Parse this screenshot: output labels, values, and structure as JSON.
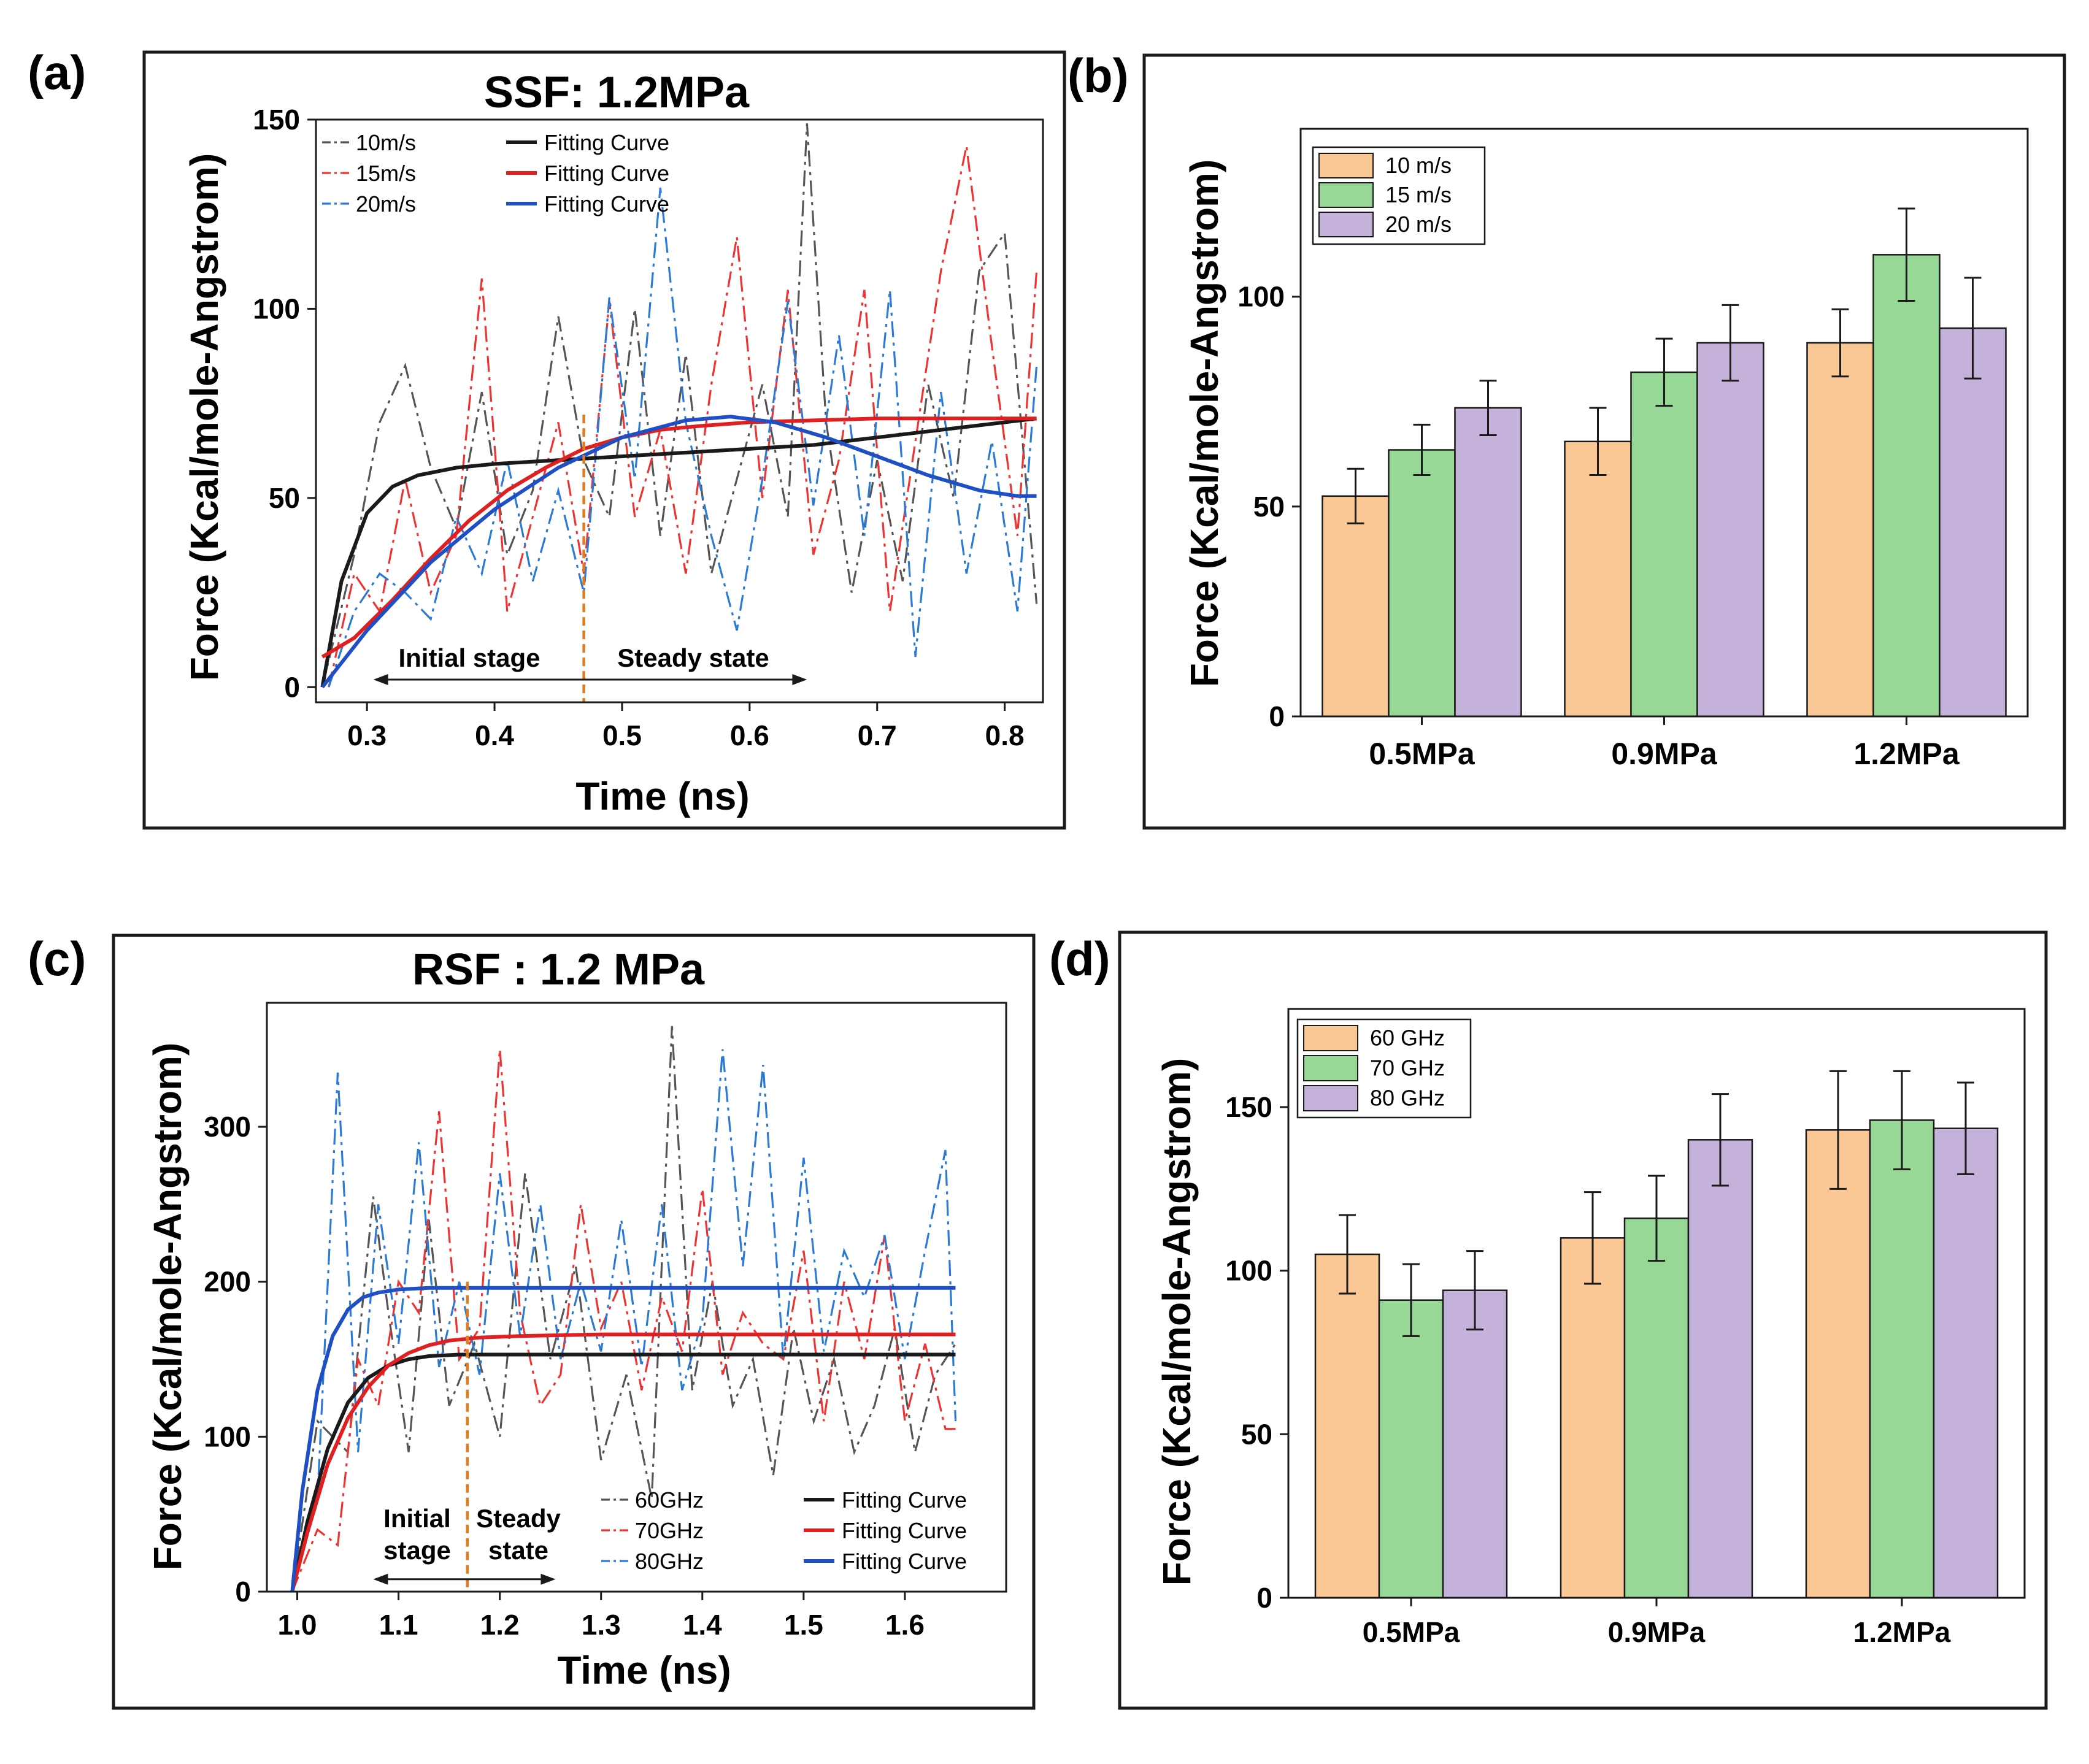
{
  "figure": {
    "panel_labels": [
      "(a)",
      "(b)",
      "(c)",
      "(d)"
    ]
  },
  "colors": {
    "black": "#1a1a1a",
    "red": "#e02020",
    "blue": "#1f4fc4",
    "dash_black": "#555555",
    "dash_red": "#ee3333",
    "dash_blue": "#2a7ad6",
    "phase_marker": "#e07b20",
    "bar_orange": "#f9c895",
    "bar_green": "#97d897",
    "bar_purple": "#c5b2da"
  },
  "chart_data": [
    {
      "id": "a",
      "type": "line",
      "title": "SSF: 1.2MPa",
      "xlabel": "Time (ns)",
      "ylabel": "Force (Kcal/mole-Angstrom)",
      "xlim": [
        0.26,
        0.83
      ],
      "ylim": [
        -4,
        150
      ],
      "xticks": [
        0.3,
        0.4,
        0.5,
        0.6,
        0.7,
        0.8
      ],
      "yticks": [
        0,
        50,
        100,
        150
      ],
      "xticklabels": [
        "0.3",
        "0.4",
        "0.5",
        "0.6",
        "0.7",
        "0.8"
      ],
      "yticklabels": [
        "0",
        "50",
        "100",
        "150"
      ],
      "phase_boundary_x": 0.47,
      "annotations": {
        "initial": "Initial stage",
        "steady": "Steady state"
      },
      "arrow_x": [
        0.305,
        0.645
      ],
      "arrow_y": 2,
      "legend": {
        "placement": "top-left",
        "raw": [
          "10m/s",
          "15m/s",
          "20m/s"
        ],
        "fit": [
          "Fitting Curve",
          "Fitting Curve",
          "Fitting Curve"
        ]
      },
      "raw_series": [
        {
          "name": "10m/s",
          "color": "dash_black",
          "x": [
            0.265,
            0.29,
            0.31,
            0.33,
            0.35,
            0.37,
            0.39,
            0.41,
            0.43,
            0.45,
            0.47,
            0.49,
            0.51,
            0.53,
            0.55,
            0.57,
            0.59,
            0.61,
            0.63,
            0.645,
            0.66,
            0.68,
            0.7,
            0.72,
            0.74,
            0.76,
            0.78,
            0.8,
            0.825
          ],
          "y": [
            0,
            35,
            70,
            85,
            58,
            42,
            78,
            35,
            52,
            98,
            60,
            45,
            100,
            40,
            88,
            30,
            55,
            80,
            45,
            149,
            70,
            25,
            60,
            28,
            80,
            50,
            110,
            120,
            22
          ]
        },
        {
          "name": "15m/s",
          "color": "dash_red",
          "x": [
            0.27,
            0.29,
            0.31,
            0.33,
            0.35,
            0.37,
            0.39,
            0.41,
            0.43,
            0.45,
            0.47,
            0.49,
            0.51,
            0.53,
            0.55,
            0.57,
            0.59,
            0.61,
            0.63,
            0.65,
            0.67,
            0.69,
            0.71,
            0.73,
            0.75,
            0.77,
            0.79,
            0.81,
            0.825
          ],
          "y": [
            0,
            30,
            20,
            55,
            25,
            40,
            108,
            20,
            45,
            70,
            30,
            102,
            45,
            68,
            30,
            80,
            119,
            50,
            105,
            35,
            60,
            105,
            20,
            65,
            110,
            143,
            90,
            40,
            110
          ]
        },
        {
          "name": "20m/s",
          "color": "dash_blue",
          "x": [
            0.27,
            0.29,
            0.31,
            0.33,
            0.35,
            0.37,
            0.39,
            0.41,
            0.43,
            0.45,
            0.47,
            0.49,
            0.51,
            0.53,
            0.55,
            0.57,
            0.59,
            0.61,
            0.63,
            0.65,
            0.67,
            0.69,
            0.71,
            0.73,
            0.75,
            0.77,
            0.79,
            0.81,
            0.825
          ],
          "y": [
            0,
            20,
            30,
            25,
            18,
            45,
            30,
            60,
            28,
            52,
            25,
            103,
            55,
            132,
            70,
            40,
            15,
            55,
            102,
            48,
            93,
            40,
            105,
            8,
            78,
            30,
            65,
            20,
            85
          ]
        }
      ],
      "fit_series": [
        {
          "name": "Fitting Curve",
          "color": "black",
          "x": [
            0.265,
            0.28,
            0.3,
            0.32,
            0.34,
            0.37,
            0.4,
            0.45,
            0.5,
            0.55,
            0.6,
            0.65,
            0.7,
            0.75,
            0.8,
            0.825
          ],
          "y": [
            0,
            28,
            46,
            53,
            56,
            58,
            59,
            60,
            61,
            62,
            63,
            64,
            66,
            68,
            70,
            71
          ]
        },
        {
          "name": "Fitting Curve",
          "color": "red",
          "x": [
            0.265,
            0.29,
            0.32,
            0.35,
            0.38,
            0.41,
            0.44,
            0.47,
            0.5,
            0.53,
            0.56,
            0.6,
            0.65,
            0.7,
            0.75,
            0.8,
            0.825
          ],
          "y": [
            8,
            13,
            23,
            34,
            44,
            52,
            58,
            63,
            66,
            68,
            69,
            70,
            70.5,
            71,
            71,
            71,
            71
          ]
        },
        {
          "name": "Fitting Curve",
          "color": "blue",
          "x": [
            0.265,
            0.3,
            0.35,
            0.4,
            0.45,
            0.5,
            0.55,
            0.585,
            0.62,
            0.66,
            0.7,
            0.74,
            0.78,
            0.81,
            0.825
          ],
          "y": [
            0,
            15,
            33,
            47,
            58,
            66,
            70.5,
            71.5,
            70,
            66,
            61,
            56,
            52,
            50.5,
            50.5
          ]
        }
      ]
    },
    {
      "id": "b",
      "type": "bar",
      "title": "",
      "xlabel": "",
      "ylabel": "Force (Kcal/mole-Angstrom)",
      "ylim": [
        0,
        140
      ],
      "yticks": [
        0,
        50,
        100
      ],
      "yticklabels": [
        "0",
        "50",
        "100"
      ],
      "categories": [
        "0.5MPa",
        "0.9MPa",
        "1.2MPa"
      ],
      "legend": {
        "placement": "top-left"
      },
      "series": [
        {
          "name": "10 m/s",
          "color": "bar_orange",
          "values": [
            52.5,
            65.5,
            89
          ],
          "errors": [
            6.5,
            8,
            8
          ]
        },
        {
          "name": "15 m/s",
          "color": "bar_green",
          "values": [
            63.5,
            82,
            110
          ],
          "errors": [
            6,
            8,
            11
          ]
        },
        {
          "name": "20 m/s",
          "color": "bar_purple",
          "values": [
            73.5,
            89,
            92.5
          ],
          "errors": [
            6.5,
            9,
            12
          ]
        }
      ]
    },
    {
      "id": "c",
      "type": "line",
      "title": "RSF : 1.2 MPa",
      "xlabel": "Time (ns)",
      "ylabel": "Force (Kcal/mole-Angstrom)",
      "xlim": [
        0.97,
        1.7
      ],
      "ylim": [
        0,
        380
      ],
      "xticks": [
        1.0,
        1.1,
        1.2,
        1.3,
        1.4,
        1.5,
        1.6
      ],
      "yticks": [
        0,
        100,
        200,
        300
      ],
      "xticklabels": [
        "1.0",
        "1.1",
        "1.2",
        "1.3",
        "1.4",
        "1.5",
        "1.6"
      ],
      "yticklabels": [
        "0",
        "100",
        "200",
        "300"
      ],
      "phase_boundary_x": 1.168,
      "annotations": {
        "initial": "Initial\nstage",
        "steady": "Steady\nstate"
      },
      "arrow_x": [
        1.075,
        1.255
      ],
      "arrow_y": 8,
      "legend": {
        "placement": "bottom-right",
        "raw": [
          "60GHz",
          "70GHz",
          "80GHz"
        ],
        "fit": [
          "Fitting Curve",
          "Fitting Curve",
          "Fitting Curve"
        ]
      },
      "raw_series": [
        {
          "name": "60GHz",
          "color": "dash_black",
          "x": [
            0.995,
            1.02,
            1.05,
            1.075,
            1.09,
            1.11,
            1.13,
            1.15,
            1.175,
            1.2,
            1.225,
            1.25,
            1.275,
            1.3,
            1.325,
            1.35,
            1.37,
            1.39,
            1.41,
            1.43,
            1.45,
            1.47,
            1.49,
            1.51,
            1.53,
            1.55,
            1.57,
            1.59,
            1.61,
            1.63,
            1.65
          ],
          "y": [
            0,
            110,
            90,
            255,
            180,
            90,
            240,
            120,
            160,
            100,
            270,
            150,
            210,
            85,
            140,
            60,
            365,
            130,
            200,
            120,
            150,
            75,
            170,
            110,
            150,
            90,
            120,
            170,
            90,
            140,
            160
          ]
        },
        {
          "name": "70GHz",
          "color": "dash_red",
          "x": [
            0.995,
            1.02,
            1.04,
            1.06,
            1.08,
            1.1,
            1.12,
            1.14,
            1.16,
            1.18,
            1.2,
            1.22,
            1.24,
            1.26,
            1.28,
            1.3,
            1.32,
            1.34,
            1.36,
            1.38,
            1.4,
            1.42,
            1.44,
            1.46,
            1.48,
            1.5,
            1.52,
            1.54,
            1.56,
            1.58,
            1.6,
            1.62,
            1.64,
            1.65
          ],
          "y": [
            0,
            40,
            30,
            150,
            120,
            200,
            180,
            310,
            150,
            170,
            350,
            180,
            120,
            140,
            250,
            170,
            200,
            130,
            190,
            155,
            260,
            140,
            180,
            160,
            150,
            220,
            110,
            200,
            150,
            230,
            110,
            160,
            105,
            105
          ]
        },
        {
          "name": "80GHz",
          "color": "dash_blue",
          "x": [
            0.995,
            1.02,
            1.04,
            1.06,
            1.08,
            1.1,
            1.12,
            1.14,
            1.16,
            1.18,
            1.2,
            1.22,
            1.24,
            1.26,
            1.28,
            1.3,
            1.32,
            1.34,
            1.36,
            1.38,
            1.4,
            1.42,
            1.44,
            1.46,
            1.48,
            1.5,
            1.52,
            1.54,
            1.56,
            1.58,
            1.6,
            1.62,
            1.64,
            1.65
          ],
          "y": [
            0,
            60,
            335,
            90,
            250,
            160,
            290,
            145,
            200,
            140,
            270,
            165,
            250,
            150,
            200,
            155,
            240,
            145,
            250,
            130,
            175,
            350,
            210,
            340,
            150,
            280,
            155,
            220,
            190,
            230,
            150,
            220,
            285,
            110
          ]
        }
      ],
      "fit_series": [
        {
          "name": "Fitting Curve",
          "color": "black",
          "x": [
            0.995,
            1.01,
            1.03,
            1.05,
            1.07,
            1.09,
            1.11,
            1.13,
            1.16,
            1.2,
            1.3,
            1.4,
            1.5,
            1.6,
            1.65
          ],
          "y": [
            0,
            45,
            92,
            122,
            138,
            146,
            150,
            152,
            153,
            153,
            153,
            153,
            153,
            153,
            153
          ]
        },
        {
          "name": "Fitting Curve",
          "color": "red",
          "x": [
            0.995,
            1.01,
            1.03,
            1.05,
            1.07,
            1.09,
            1.11,
            1.13,
            1.15,
            1.18,
            1.22,
            1.3,
            1.4,
            1.5,
            1.6,
            1.65
          ],
          "y": [
            0,
            38,
            82,
            112,
            132,
            146,
            154,
            159,
            162,
            164,
            165,
            166,
            166,
            166,
            166,
            166
          ]
        },
        {
          "name": "Fitting Curve",
          "color": "blue",
          "x": [
            0.995,
            1.005,
            1.02,
            1.035,
            1.05,
            1.065,
            1.08,
            1.1,
            1.13,
            1.17,
            1.25,
            1.35,
            1.5,
            1.65
          ],
          "y": [
            0,
            65,
            130,
            165,
            182,
            190,
            193,
            195,
            196,
            196,
            196,
            196,
            196,
            196
          ]
        }
      ]
    },
    {
      "id": "d",
      "type": "bar",
      "title": "",
      "xlabel": "",
      "ylabel": "Force (Kcal/mole-Angstrom)",
      "ylim": [
        0,
        180
      ],
      "yticks": [
        0,
        50,
        100,
        150
      ],
      "yticklabels": [
        "0",
        "50",
        "100",
        "150"
      ],
      "categories": [
        "0.5MPa",
        "0.9MPa",
        "1.2MPa"
      ],
      "legend": {
        "placement": "top-left"
      },
      "series": [
        {
          "name": "60 GHz",
          "color": "bar_orange",
          "values": [
            105,
            110,
            143
          ],
          "errors": [
            12,
            14,
            18
          ]
        },
        {
          "name": "70 GHz",
          "color": "bar_green",
          "values": [
            91,
            116,
            146
          ],
          "errors": [
            11,
            13,
            15
          ]
        },
        {
          "name": "80 GHz",
          "color": "bar_purple",
          "values": [
            94,
            140,
            143.5
          ],
          "errors": [
            12,
            14,
            14
          ]
        }
      ]
    }
  ]
}
